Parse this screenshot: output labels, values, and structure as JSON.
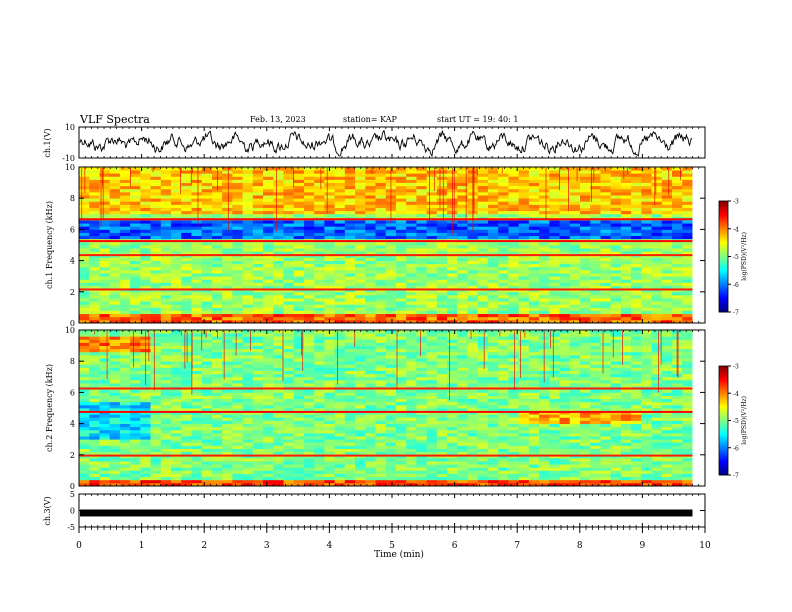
{
  "header": {
    "title": "VLF Spectra",
    "date": "Feb. 13, 2023",
    "station": "station= KAP",
    "start": "start  UT =  19: 40: 1"
  },
  "chart_data": [
    {
      "id": "ch1-waveform",
      "type": "line",
      "ylabel": "ch.1(V)",
      "ylim": [
        -10,
        10
      ],
      "yticks": [
        10,
        -10
      ],
      "xlim": [
        0,
        10
      ]
    },
    {
      "id": "ch1-spectrogram",
      "type": "heatmap",
      "ylabel": "ch.1 Frequency (kHz)",
      "ylim": [
        0,
        10
      ],
      "yticks": [
        0,
        2,
        4,
        6,
        8,
        10
      ],
      "xlim": [
        0,
        10
      ],
      "data_end_min": 9.8,
      "colorbar": {
        "label": "log(PSD)(V²/Hz)",
        "range": [
          -7,
          -3
        ],
        "ticks": [
          -3,
          -4,
          -5,
          -6,
          -7
        ]
      },
      "dominant_level": -4.9,
      "features": [
        {
          "freq_khz": [
            7.0,
            10.0
          ],
          "level": -4.3,
          "note": "broadband noise, red vertical streaks (sferics)"
        },
        {
          "freq_khz": [
            5.5,
            6.6
          ],
          "level": -6.1,
          "note": "blue low-power band"
        },
        {
          "freq_khz": [
            6.6,
            6.7
          ],
          "level": -3.5,
          "note": "line"
        },
        {
          "freq_khz": [
            5.2,
            5.3
          ],
          "level": -3.5,
          "note": "line"
        },
        {
          "freq_khz": [
            4.3,
            4.4
          ],
          "level": -3.6,
          "note": "line"
        },
        {
          "freq_khz": [
            2.1,
            2.2
          ],
          "level": -3.6,
          "note": "line"
        },
        {
          "freq_khz": [
            0.0,
            0.5
          ],
          "level": -3.9,
          "note": "strong low-frequency band"
        }
      ]
    },
    {
      "id": "ch2-spectrogram",
      "type": "heatmap",
      "ylabel": "ch.2 Frequency (kHz)",
      "ylim": [
        0,
        10
      ],
      "yticks": [
        0,
        2,
        4,
        6,
        8,
        10
      ],
      "xlim": [
        0,
        10
      ],
      "data_end_min": 9.8,
      "colorbar": {
        "label": "log(PSD)(V²/Hz)",
        "range": [
          -7,
          -3
        ],
        "ticks": [
          -3,
          -4,
          -5,
          -6,
          -7
        ]
      },
      "dominant_level": -5.0,
      "features": [
        {
          "freq_khz": [
            8.6,
            9.6
          ],
          "time_min": [
            0,
            1.2
          ],
          "level": -4.0,
          "note": "strong band before 1.2 min"
        },
        {
          "freq_khz": [
            3.0,
            5.4
          ],
          "time_min": [
            0,
            1.2
          ],
          "level": -5.6,
          "note": "banded structure before 1.2 min"
        },
        {
          "freq_khz": [
            4.0,
            4.7
          ],
          "time_min": [
            7.0,
            9.0
          ],
          "level": -4.2,
          "note": "yellow patch"
        },
        {
          "freq_khz": [
            4.7,
            4.8
          ],
          "level": -3.5,
          "note": "line"
        },
        {
          "freq_khz": [
            6.2,
            6.3
          ],
          "level": -3.6,
          "note": "line"
        },
        {
          "freq_khz": [
            1.9,
            2.0
          ],
          "level": -3.6,
          "note": "line"
        },
        {
          "freq_khz": [
            0.0,
            0.3
          ],
          "level": -3.8,
          "note": "strong low-frequency band"
        }
      ]
    },
    {
      "id": "ch3-waveform",
      "type": "line",
      "ylabel": "ch.3(V)",
      "ylim": [
        -5,
        5
      ],
      "yticks": [
        5,
        0,
        -5
      ],
      "xlim": [
        0,
        10
      ],
      "level_v": [
        -1.5,
        0.0
      ]
    }
  ],
  "xaxis": {
    "label": "Time (min)",
    "ticks": [
      "0",
      "1",
      "2",
      "3",
      "4",
      "5",
      "6",
      "7",
      "8",
      "9",
      "10"
    ]
  }
}
